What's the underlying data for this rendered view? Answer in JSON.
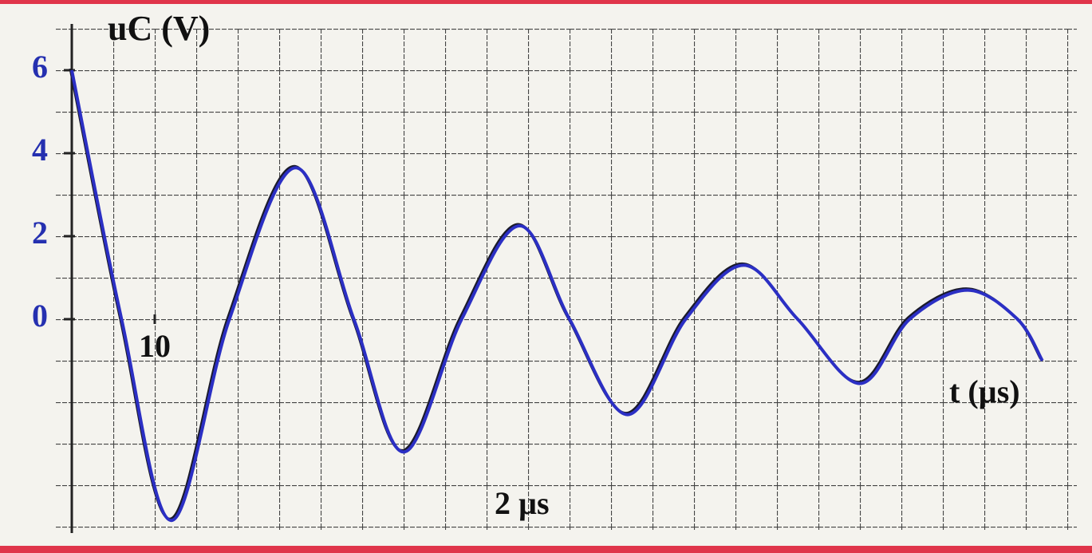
{
  "chart_data": {
    "type": "line",
    "y_label": "uC (V)",
    "x_label": "t (µs)",
    "annotation": "2 µs",
    "x": [
      0,
      6,
      12,
      19,
      27,
      34,
      40,
      47,
      54,
      60,
      67,
      74,
      81,
      87.5,
      95,
      101,
      108,
      114,
      117
    ],
    "series": [
      {
        "color": "#2b2fc4",
        "values": [
          6,
          0,
          -4.85,
          0,
          3.65,
          0,
          -3.2,
          0,
          2.25,
          0,
          -2.3,
          0,
          1.3,
          0,
          -1.55,
          0,
          0.7,
          0,
          -1.0
        ]
      }
    ],
    "xlim": [
      0,
      120
    ],
    "ylim": [
      -5,
      7
    ],
    "xticks": [
      10
    ],
    "yticks": [
      6,
      4,
      2,
      0
    ],
    "grid": true
  }
}
